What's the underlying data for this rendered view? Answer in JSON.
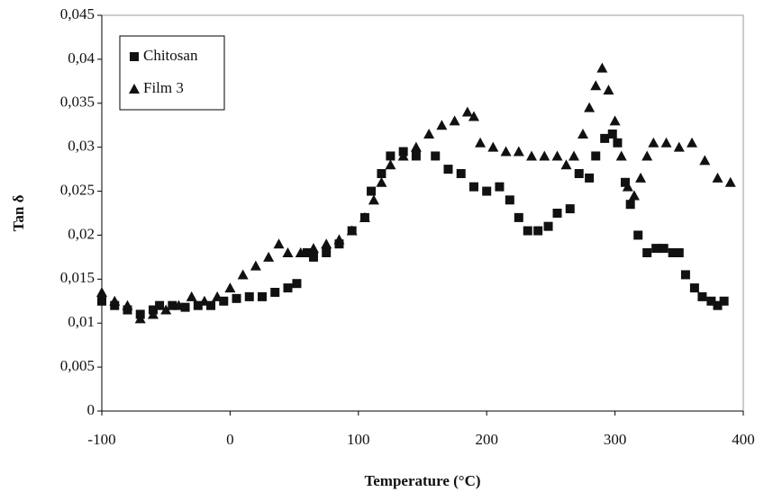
{
  "chart_data": {
    "type": "scatter",
    "x_label": "Temperature (°C)",
    "y_label": "Tan δ",
    "xlim": [
      -100,
      400
    ],
    "xticks": [
      -100,
      0,
      100,
      200,
      300,
      400
    ],
    "ylim": [
      0,
      0.045
    ],
    "yticks": [
      0,
      {
        "value": 0.005,
        "label": "0,005"
      },
      {
        "value": 0.01,
        "label": "0,01"
      },
      {
        "value": 0.015,
        "label": "0,015"
      },
      {
        "value": 0.02,
        "label": "0,02"
      },
      {
        "value": 0.025,
        "label": "0,025"
      },
      {
        "value": 0.03,
        "label": "0,03"
      },
      {
        "value": 0.035,
        "label": "0,035"
      },
      {
        "value": 0.04,
        "label": "0,04"
      },
      {
        "value": 0.045,
        "label": "0,045"
      }
    ],
    "legend": "top-left",
    "series": [
      {
        "name": "Chitosan",
        "color": "#111111",
        "marker": "square",
        "x": [
          -100,
          -90,
          -80,
          -70,
          -60,
          -55,
          -45,
          -35,
          -25,
          -15,
          -5,
          5,
          15,
          25,
          35,
          45,
          52,
          60,
          65,
          75,
          85,
          95,
          105,
          110,
          118,
          125,
          135,
          145,
          160,
          170,
          180,
          190,
          200,
          210,
          218,
          225,
          232,
          240,
          248,
          255,
          265,
          272,
          280,
          285,
          292,
          298,
          302,
          308,
          312,
          318,
          325,
          332,
          338,
          345,
          350,
          355,
          362,
          368,
          375,
          380,
          385
        ],
        "values": [
          0.0125,
          0.012,
          0.0115,
          0.011,
          0.0115,
          0.012,
          0.012,
          0.0118,
          0.012,
          0.012,
          0.0125,
          0.0128,
          0.013,
          0.013,
          0.0135,
          0.014,
          0.0145,
          0.018,
          0.0175,
          0.018,
          0.019,
          0.0205,
          0.022,
          0.025,
          0.027,
          0.029,
          0.0295,
          0.029,
          0.029,
          0.0275,
          0.027,
          0.0255,
          0.025,
          0.0255,
          0.024,
          0.022,
          0.0205,
          0.0205,
          0.021,
          0.0225,
          0.023,
          0.027,
          0.0265,
          0.029,
          0.031,
          0.0315,
          0.0305,
          0.026,
          0.0235,
          0.02,
          0.018,
          0.0185,
          0.0185,
          0.018,
          0.018,
          0.0155,
          0.014,
          0.013,
          0.0125,
          0.012,
          0.0125
        ]
      },
      {
        "name": "Film 3",
        "color": "#111111",
        "marker": "triangle",
        "x": [
          -100,
          -90,
          -80,
          -70,
          -60,
          -50,
          -40,
          -30,
          -20,
          -10,
          0,
          10,
          20,
          30,
          38,
          45,
          55,
          65,
          75,
          85,
          95,
          105,
          112,
          118,
          125,
          135,
          145,
          155,
          165,
          175,
          185,
          190,
          195,
          205,
          215,
          225,
          235,
          245,
          255,
          262,
          268,
          275,
          280,
          285,
          290,
          295,
          300,
          305,
          310,
          315,
          320,
          325,
          330,
          340,
          350,
          360,
          370,
          380,
          390
        ],
        "values": [
          0.0135,
          0.0125,
          0.012,
          0.0105,
          0.011,
          0.0115,
          0.012,
          0.013,
          0.0125,
          0.013,
          0.014,
          0.0155,
          0.0165,
          0.0175,
          0.019,
          0.018,
          0.018,
          0.0185,
          0.019,
          0.0195,
          0.0205,
          0.022,
          0.024,
          0.026,
          0.028,
          0.029,
          0.03,
          0.0315,
          0.0325,
          0.033,
          0.034,
          0.0335,
          0.0305,
          0.03,
          0.0295,
          0.0295,
          0.029,
          0.029,
          0.029,
          0.028,
          0.029,
          0.0315,
          0.0345,
          0.037,
          0.039,
          0.0365,
          0.033,
          0.029,
          0.0255,
          0.0245,
          0.0265,
          0.029,
          0.0305,
          0.0305,
          0.03,
          0.0305,
          0.0285,
          0.0265,
          0.026
        ]
      }
    ]
  }
}
